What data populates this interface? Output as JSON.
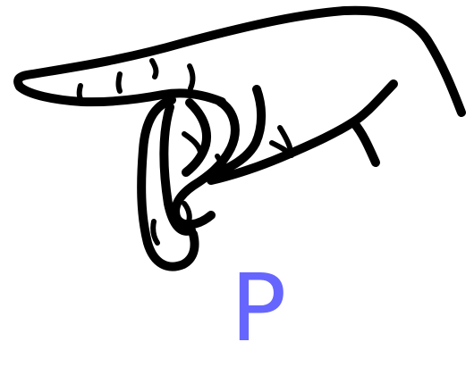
{
  "sign": {
    "letter": "P",
    "letter_color": "#6666ff",
    "illustration": "hand-sign-p-icon"
  }
}
